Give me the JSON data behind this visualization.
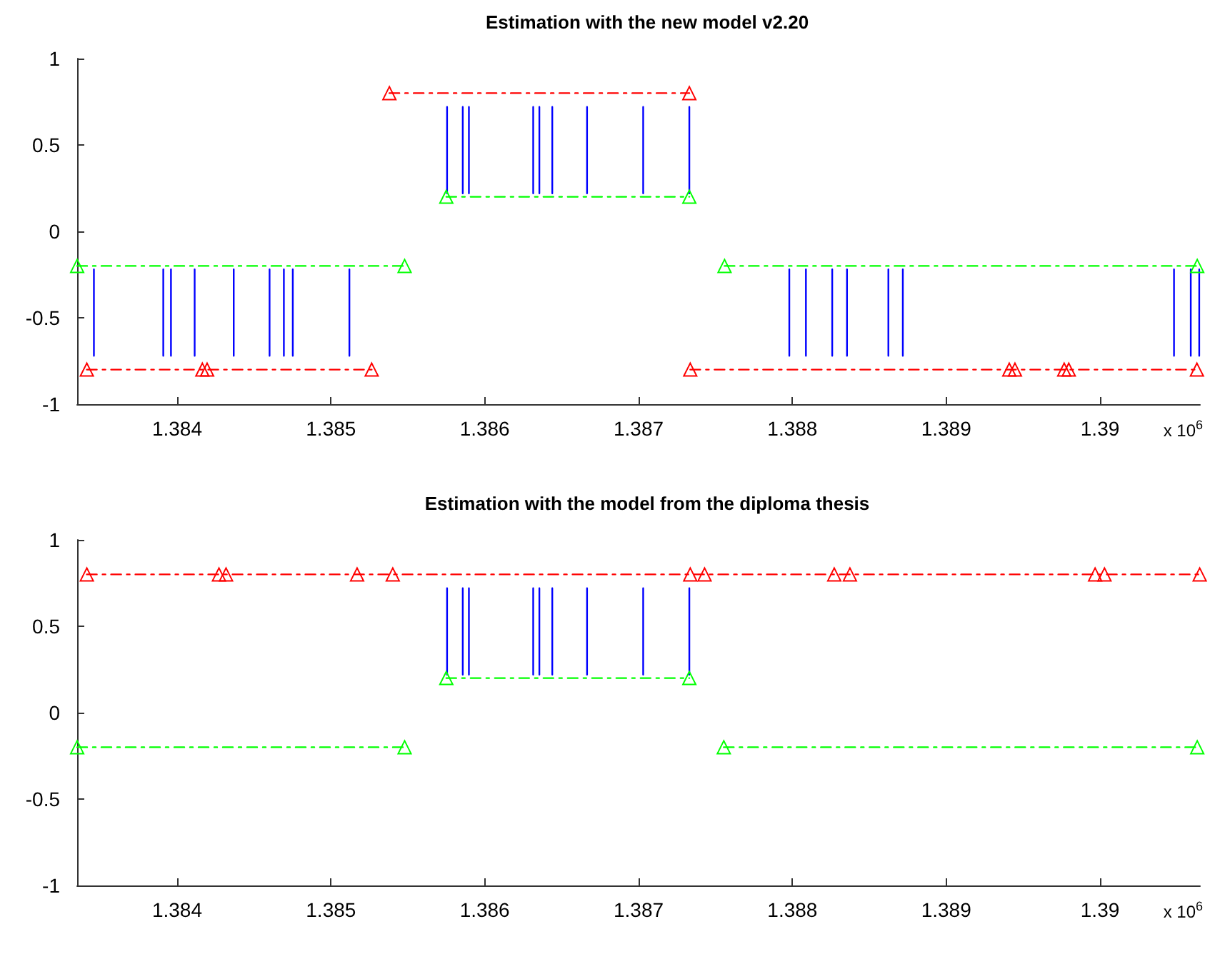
{
  "chart_data": [
    {
      "type": "line",
      "title": "Estimation with the new model v2.20",
      "annotations": [
        "x 10$^{6}$"
      ],
      "grid": false,
      "xlim": [
        1.38335,
        1.39065
      ],
      "xticks": [
        1.384,
        1.385,
        1.386,
        1.387,
        1.388,
        1.389,
        1.39
      ],
      "ylim": [
        -1,
        1
      ],
      "yticks": [
        -1,
        -0.5,
        0,
        0.5,
        1
      ],
      "series": [
        {
          "color": "#0000ff",
          "marker": "none",
          "line_style": "solid",
          "x": [
            1.385755,
            1.385755,
            null,
            1.385857,
            1.385857,
            null,
            1.385897,
            1.385897,
            null,
            1.386315,
            1.386315,
            null,
            1.386355,
            1.386355,
            null,
            1.386439,
            1.386439,
            null,
            1.386665,
            1.386665,
            null,
            1.38703,
            1.38703,
            null,
            1.38733,
            1.38733
          ],
          "values": [
            0.72,
            0.22,
            null,
            0.72,
            0.22,
            null,
            0.72,
            0.22,
            null,
            0.72,
            0.22,
            null,
            0.72,
            0.22,
            null,
            0.72,
            0.22,
            null,
            0.72,
            0.22,
            null,
            0.72,
            0.22,
            null,
            0.72,
            0.22
          ]
        },
        {
          "color": "#0000ff",
          "marker": "none",
          "line_style": "solid",
          "x": [
            1.383459,
            1.383459,
            null,
            1.38391,
            1.38391,
            null,
            1.38396,
            1.38396,
            null,
            1.384114,
            1.384114,
            null,
            1.384368,
            1.384368,
            null,
            1.384601,
            1.384601,
            null,
            1.384694,
            1.384694,
            null,
            1.384752,
            1.384752,
            null,
            1.38512,
            1.38512,
            null,
            1.38798,
            1.38798,
            null,
            1.388088,
            1.388088,
            null,
            1.388259,
            1.388259,
            null,
            1.388355,
            1.388355,
            null,
            1.388624,
            1.388624,
            null,
            1.388718,
            1.388718,
            null,
            1.390481,
            1.390481,
            null,
            1.39059,
            1.39059,
            null,
            1.390645,
            1.390645
          ],
          "values": [
            -0.22,
            -0.72,
            null,
            -0.22,
            -0.72,
            null,
            -0.22,
            -0.72,
            null,
            -0.22,
            -0.72,
            null,
            -0.22,
            -0.72,
            null,
            -0.22,
            -0.72,
            null,
            -0.22,
            -0.72,
            null,
            -0.22,
            -0.72,
            null,
            -0.22,
            -0.72,
            null,
            -0.22,
            -0.72,
            null,
            -0.22,
            -0.72,
            null,
            -0.22,
            -0.72,
            null,
            -0.22,
            -0.72,
            null,
            -0.22,
            -0.72,
            null,
            -0.22,
            -0.72,
            null,
            -0.22,
            -0.72,
            null,
            -0.22,
            -0.72,
            null,
            -0.22,
            -0.72
          ]
        },
        {
          "color": "#ff0000",
          "marker": "triangle",
          "line_style": "dashed",
          "x": [
            1.38538,
            1.38733
          ],
          "values": [
            0.8,
            0.8
          ]
        },
        {
          "color": "#00ff00",
          "marker": "triangle",
          "line_style": "dashed",
          "x": [
            1.38575,
            1.38733
          ],
          "values": [
            0.2,
            0.2
          ]
        },
        {
          "color": "#00ff00",
          "marker": "triangle",
          "line_style": "dashed",
          "x": [
            1.38335,
            1.385479,
            null,
            1.387559,
            1.390632
          ],
          "values": [
            -0.2,
            -0.2,
            null,
            -0.2,
            -0.2
          ]
        },
        {
          "color": "#ff0000",
          "marker": "triangle",
          "line_style": "dashed",
          "x": [
            1.383413,
            1.384164,
            1.384195,
            1.385265,
            null,
            1.387336,
            1.38941,
            1.389447,
            1.389767,
            1.389797,
            1.39063
          ],
          "values": [
            -0.8,
            -0.8,
            -0.8,
            -0.8,
            null,
            -0.8,
            -0.8,
            -0.8,
            -0.8,
            -0.8,
            -0.8
          ]
        }
      ]
    },
    {
      "type": "line",
      "title": "Estimation with the model from the diploma thesis",
      "annotations": [
        "x 10$^{6}$"
      ],
      "grid": false,
      "xlim": [
        1.38335,
        1.39065
      ],
      "xticks": [
        1.384,
        1.385,
        1.386,
        1.387,
        1.388,
        1.389,
        1.39
      ],
      "ylim": [
        -1,
        1
      ],
      "yticks": [
        -1,
        -0.5,
        0,
        0.5,
        1
      ],
      "series": [
        {
          "color": "#0000ff",
          "marker": "none",
          "line_style": "solid",
          "x": [
            1.385755,
            1.385755,
            null,
            1.385857,
            1.385857,
            null,
            1.385897,
            1.385897,
            null,
            1.386315,
            1.386315,
            null,
            1.386355,
            1.386355,
            null,
            1.386439,
            1.386439,
            null,
            1.386665,
            1.386665,
            null,
            1.38703,
            1.38703,
            null,
            1.38733,
            1.38733
          ],
          "values": [
            0.72,
            0.22,
            null,
            0.72,
            0.22,
            null,
            0.72,
            0.22,
            null,
            0.72,
            0.22,
            null,
            0.72,
            0.22,
            null,
            0.72,
            0.22,
            null,
            0.72,
            0.22,
            null,
            0.72,
            0.22,
            null,
            0.72,
            0.22
          ]
        },
        {
          "color": "#ff0000",
          "marker": "triangle",
          "line_style": "dashed",
          "x": [
            1.383413,
            1.384272,
            1.384318,
            1.38517,
            1.385402,
            1.387336,
            1.387429,
            1.388272,
            1.388374,
            1.389968,
            1.390029,
            1.390648
          ],
          "values": [
            0.8,
            0.8,
            0.8,
            0.8,
            0.8,
            0.8,
            0.8,
            0.8,
            0.8,
            0.8,
            0.8,
            0.8
          ]
        },
        {
          "color": "#00ff00",
          "marker": "triangle",
          "line_style": "dashed",
          "x": [
            1.38575,
            1.38733
          ],
          "values": [
            0.2,
            0.2
          ]
        },
        {
          "color": "#00ff00",
          "marker": "triangle",
          "line_style": "dashed",
          "x": [
            1.38335,
            1.385479,
            null,
            1.387554,
            1.390632
          ],
          "values": [
            -0.2,
            -0.2,
            null,
            -0.2,
            -0.2
          ]
        }
      ]
    }
  ]
}
